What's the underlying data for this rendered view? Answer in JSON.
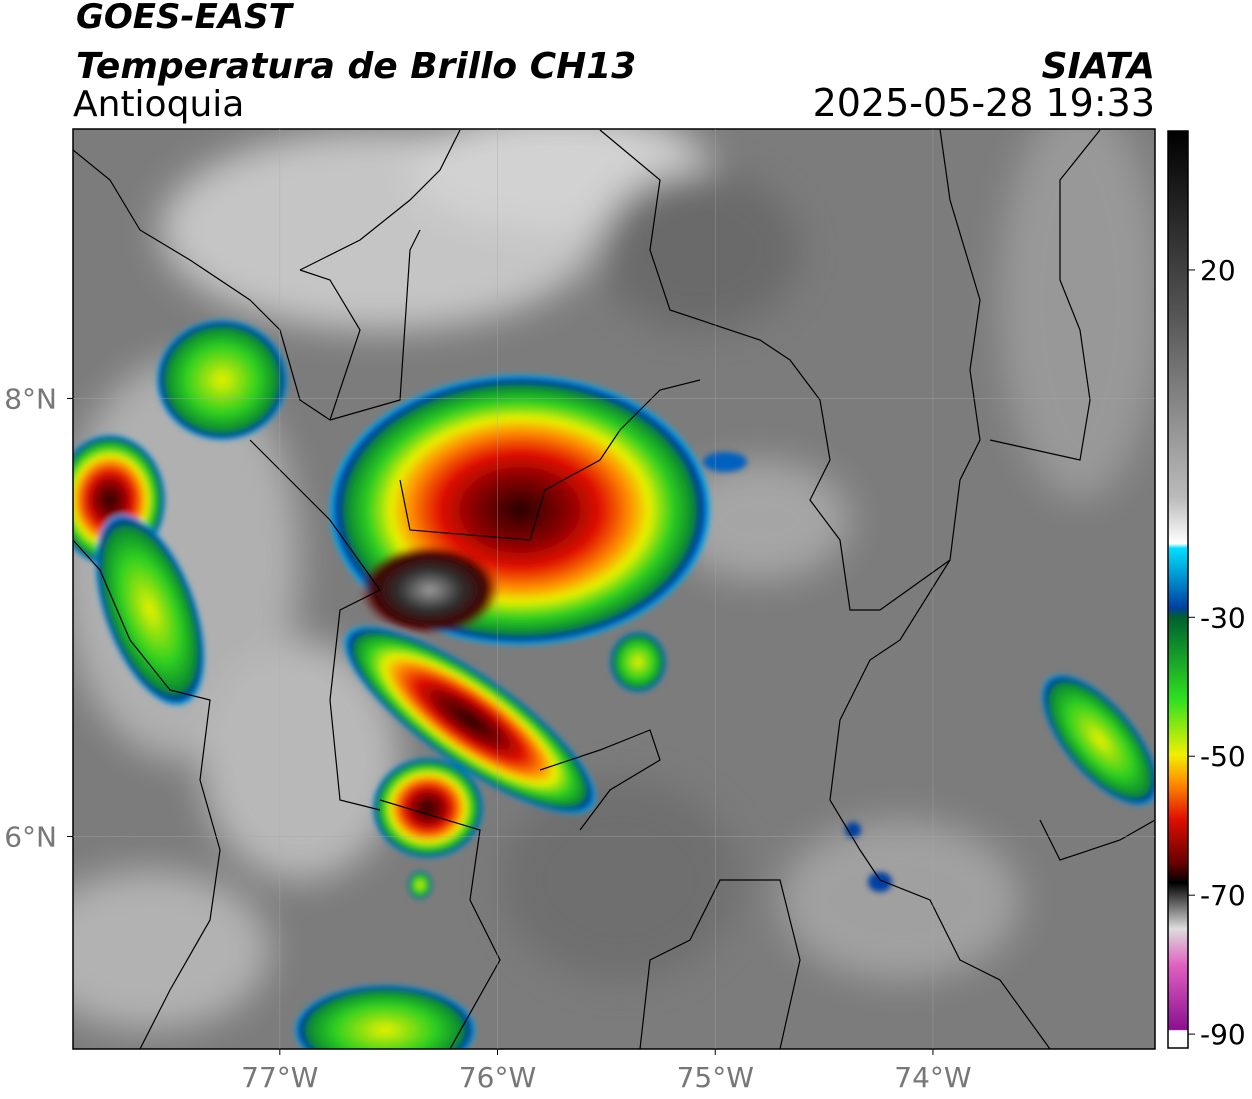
{
  "header": {
    "satellite": "GOES-EAST",
    "product": "Temperatura de Brillo CH13",
    "region": "Antioquia",
    "source": "SIATA",
    "datetime": "2025-05-28 19:33"
  },
  "map": {
    "lonlim": [
      -77.95,
      -72.98
    ],
    "latlim": [
      5.03,
      9.23
    ],
    "lonticks": [
      {
        "value": -77,
        "label": "77°W"
      },
      {
        "value": -76,
        "label": "76°W"
      },
      {
        "value": -75,
        "label": "75°W"
      },
      {
        "value": -74,
        "label": "74°W"
      }
    ],
    "latticks": [
      {
        "value": 8,
        "label": "8°N"
      },
      {
        "value": 6,
        "label": "6°N"
      }
    ],
    "grid": true
  },
  "colorbar": {
    "lim": [
      -92,
      40
    ],
    "ticks": [
      20,
      -30,
      -50,
      -70,
      -90
    ]
  }
}
